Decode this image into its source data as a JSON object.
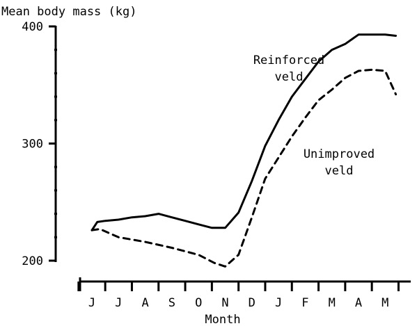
{
  "chart_data": {
    "type": "line",
    "ylabel": "Mean body mass (kg)",
    "xlabel": "Month",
    "ylim": [
      200,
      410
    ],
    "y_ticks": [
      400,
      300,
      200
    ],
    "categories": [
      "J",
      "J",
      "A",
      "S",
      "O",
      "N",
      "D",
      "J",
      "F",
      "M",
      "A",
      "M"
    ],
    "series": [
      {
        "name": "Reinforced veld",
        "label_lines": [
          "Reinforced",
          "veld"
        ],
        "style": "solid",
        "x": [
          0,
          0.2,
          0.5,
          1.0,
          1.5,
          2.0,
          2.5,
          3.0,
          3.5,
          4.0,
          4.5,
          5.0,
          5.5,
          6.0,
          6.5,
          7.0,
          7.5,
          8.0,
          8.5,
          9.0,
          9.5,
          10.0,
          10.5,
          11.0,
          11.4
        ],
        "values": [
          226,
          233,
          234,
          235,
          237,
          238,
          240,
          237,
          234,
          231,
          228,
          228,
          241,
          268,
          298,
          320,
          340,
          355,
          370,
          380,
          385,
          393,
          393,
          393,
          392
        ]
      },
      {
        "name": "Unimproved veld",
        "label_lines": [
          "Unimproved",
          "veld"
        ],
        "style": "dashed",
        "x": [
          0,
          0.3,
          1.0,
          2.0,
          3.0,
          4.0,
          4.6,
          5.0,
          5.5,
          6.0,
          6.5,
          7.0,
          7.5,
          8.0,
          8.5,
          9.0,
          9.5,
          10.0,
          10.5,
          11.0,
          11.4
        ],
        "values": [
          226,
          227,
          220,
          216,
          211,
          205,
          198,
          195,
          205,
          237,
          270,
          288,
          306,
          322,
          337,
          346,
          356,
          362,
          363,
          362,
          342
        ]
      }
    ]
  }
}
